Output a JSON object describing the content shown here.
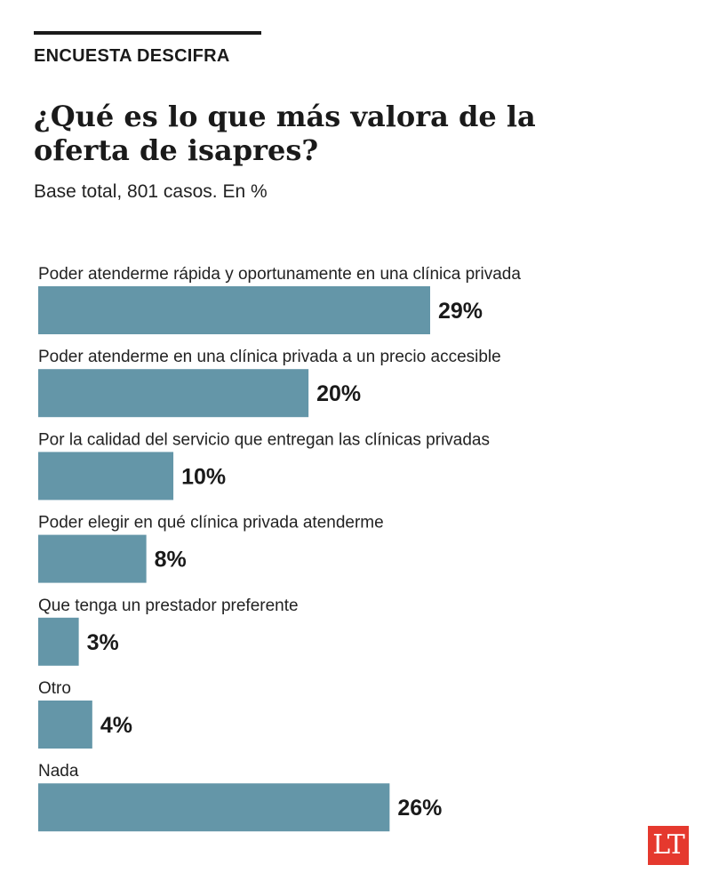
{
  "header": {
    "kicker": "ENCUESTA DESCIFRA",
    "title": "¿Qué es lo que más valora de la oferta de isapres?",
    "subtitle": "Base total, 801 casos. En %"
  },
  "logo": {
    "text": "LT",
    "color": "#e5392e"
  },
  "chart_data": {
    "type": "bar",
    "orientation": "horizontal",
    "title": "¿Qué es lo que más valora de la oferta de isapres?",
    "subtitle": "Base total, 801 casos. En %",
    "categories": [
      "Poder atenderme rápida y oportunamente en una clínica privada",
      "Poder atenderme en una clínica privada a un precio accesible",
      "Por la calidad del servicio que entregan las clínicas privadas",
      "Poder elegir en qué clínica privada atenderme",
      "Que tenga un prestador preferente",
      "Otro",
      "Nada"
    ],
    "values": [
      29,
      20,
      10,
      8,
      3,
      4,
      26
    ],
    "value_labels": [
      "29%",
      "20%",
      "10%",
      "8%",
      "3%",
      "4%",
      "26%"
    ],
    "unit": "%",
    "xlim": [
      0,
      29
    ],
    "bar_color": "#6496a8",
    "grid": false,
    "legend": "none"
  }
}
